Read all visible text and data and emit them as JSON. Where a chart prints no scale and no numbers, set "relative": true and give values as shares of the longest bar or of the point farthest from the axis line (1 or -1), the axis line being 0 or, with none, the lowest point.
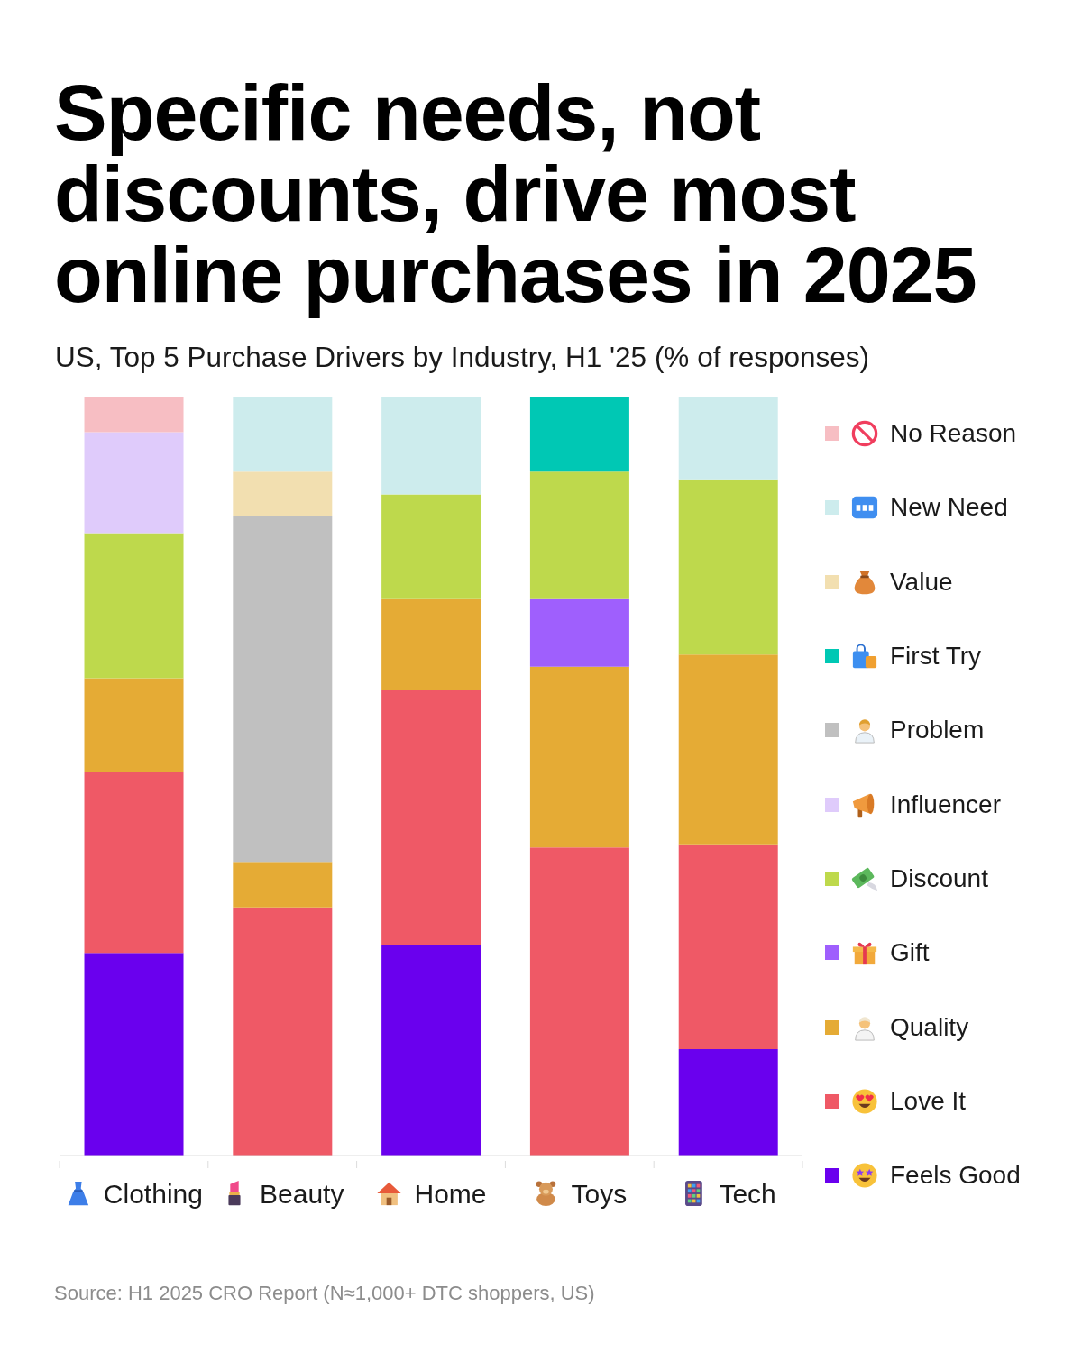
{
  "chart_data": {
    "type": "bar",
    "title": "Specific needs, not discounts, drive most online purchases in 2025",
    "subtitle": "US, Top 5 Purchase Drivers by Industry, H1 '25 (% of responses)",
    "categories": [
      "Clothing",
      "Beauty",
      "Home",
      "Toys",
      "Tech"
    ],
    "stacked": true,
    "relative": true,
    "legend": "right",
    "series": [
      {
        "name": "Feels Good",
        "color": "#6a00ee",
        "values": [
          0.267,
          null,
          0.277,
          null,
          0.14
        ]
      },
      {
        "name": "Love It",
        "color": "#ef5966",
        "values": [
          0.238,
          0.327,
          0.337,
          0.406,
          0.27
        ]
      },
      {
        "name": "Quality",
        "color": "#e5ab35",
        "values": [
          0.124,
          0.06,
          0.119,
          0.238,
          0.25
        ]
      },
      {
        "name": "Gift",
        "color": "#9f5ffd",
        "values": [
          null,
          null,
          null,
          0.089,
          null
        ]
      },
      {
        "name": "Discount",
        "color": "#bed94c",
        "values": [
          0.191,
          null,
          0.138,
          0.168,
          0.231
        ]
      },
      {
        "name": "Influencer",
        "color": "#dfcbfb",
        "values": [
          0.133,
          null,
          null,
          null,
          null
        ]
      },
      {
        "name": "Problem",
        "color": "#c0c0c0",
        "values": [
          null,
          0.455,
          null,
          null,
          null
        ]
      },
      {
        "name": "First Try",
        "color": "#00c8b4",
        "values": [
          null,
          null,
          null,
          0.099,
          null
        ]
      },
      {
        "name": "Value",
        "color": "#f2dfb0",
        "values": [
          null,
          0.059,
          null,
          null,
          null
        ]
      },
      {
        "name": "New Need",
        "color": "#cdeced",
        "values": [
          null,
          0.099,
          0.129,
          null,
          0.109
        ]
      },
      {
        "name": "No Reason",
        "color": "#f7bec3",
        "values": [
          0.047,
          null,
          null,
          null,
          null
        ]
      }
    ],
    "annotations": [
      "Source: H1 2025 CRO Report (N≈1,000+ DTC shoppers, US)"
    ]
  }
}
